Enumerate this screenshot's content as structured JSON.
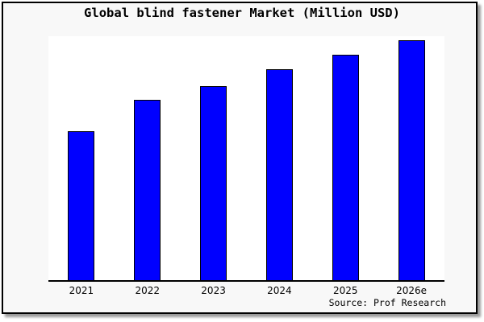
{
  "window": {
    "canvas_background": "#ffffff",
    "frame_background": "#f8f8f8",
    "frame_border_color": "#000000",
    "frame_shadow_color": "#9a9a9a"
  },
  "chart_data": {
    "type": "bar",
    "title": "Global blind fastener Market (Million USD)",
    "categories": [
      "2021",
      "2022",
      "2023",
      "2024",
      "2025",
      "2026e"
    ],
    "values": [
      62,
      75,
      81,
      88,
      94,
      100
    ],
    "values_note": "relative bar heights, tallest bar (2026e) = 100; no numeric y-axis labels shown in image",
    "xlabel": "",
    "ylabel": "",
    "ylim": [
      0,
      102
    ],
    "grid": false,
    "legend": false,
    "bar_color": "#0000ff",
    "bar_border_color": "#000000",
    "plot_background": "#ffffff",
    "axis_color": "#000000",
    "source": "Source: Prof Research"
  }
}
